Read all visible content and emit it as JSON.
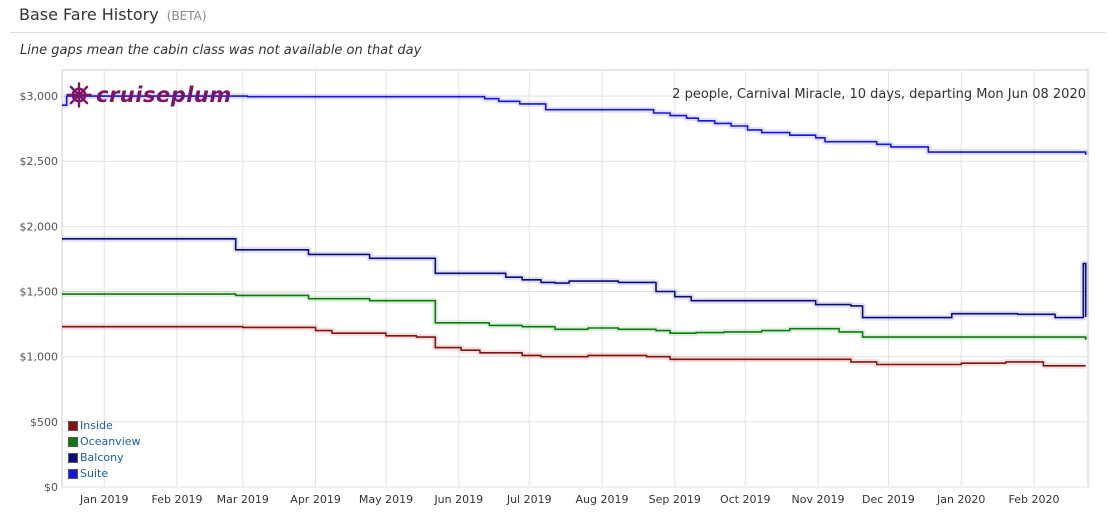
{
  "header": {
    "title": "Base Fare History",
    "beta": "(BETA)",
    "subtitle": "Line gaps mean the cabin class was not available on that day"
  },
  "brand": {
    "name": "cruiseplum",
    "icon": "ship-wheel-icon",
    "color": "#7b1466"
  },
  "chart_data": {
    "type": "line",
    "annotation": "2 people, Carnival Miracle, 10 days, departing Mon Jun 08 2020",
    "ylim": [
      0,
      3200
    ],
    "y_ticks": [
      0,
      500,
      1000,
      1500,
      2000,
      2500,
      3000
    ],
    "y_tick_labels": [
      "$0",
      "$500",
      "$1,000",
      "$1,500",
      "$2,000",
      "$2,500",
      "$3,000"
    ],
    "xlim": [
      "2018-12-14",
      "2020-02-24"
    ],
    "x_ticks": [
      "2019-01-01",
      "2019-02-01",
      "2019-03-01",
      "2019-04-01",
      "2019-05-01",
      "2019-06-01",
      "2019-07-01",
      "2019-08-01",
      "2019-09-01",
      "2019-10-01",
      "2019-11-01",
      "2019-12-01",
      "2020-01-01",
      "2020-02-01"
    ],
    "x_tick_labels": [
      "Jan 2019",
      "Feb 2019",
      "Mar 2019",
      "Apr 2019",
      "May 2019",
      "Jun 2019",
      "Jul 2019",
      "Aug 2019",
      "Sep 2019",
      "Oct 2019",
      "Nov 2019",
      "Dec 2019",
      "Jan 2020",
      "Feb 2020"
    ],
    "grid": true,
    "legend_position": "bottom-left",
    "series": [
      {
        "name": "Suite",
        "color": "#1414e6",
        "x": [
          "2018-12-14",
          "2018-12-16",
          "2019-02-25",
          "2019-03-03",
          "2019-06-08",
          "2019-06-12",
          "2019-06-18",
          "2019-06-27",
          "2019-07-08",
          "2019-08-14",
          "2019-08-23",
          "2019-08-30",
          "2019-09-06",
          "2019-09-11",
          "2019-09-18",
          "2019-09-25",
          "2019-10-02",
          "2019-10-08",
          "2019-10-20",
          "2019-10-31",
          "2019-11-04",
          "2019-11-26",
          "2019-12-02",
          "2019-12-18",
          "2020-02-21",
          "2020-02-23"
        ],
        "values": [
          2930,
          3000,
          3000,
          2995,
          2995,
          2980,
          2960,
          2940,
          2895,
          2895,
          2870,
          2850,
          2830,
          2810,
          2790,
          2770,
          2740,
          2720,
          2700,
          2680,
          2650,
          2630,
          2610,
          2570,
          2570,
          2550
        ]
      },
      {
        "name": "Balcony",
        "color": "#0c0c82",
        "x": [
          "2018-12-14",
          "2019-02-21",
          "2019-02-26",
          "2019-03-29",
          "2019-04-24",
          "2019-05-20",
          "2019-05-22",
          "2019-06-21",
          "2019-06-28",
          "2019-07-06",
          "2019-07-12",
          "2019-07-18",
          "2019-08-08",
          "2019-08-24",
          "2019-09-01",
          "2019-09-08",
          "2019-10-31",
          "2019-11-15",
          "2019-11-20",
          "2019-12-28",
          "2020-01-25",
          "2020-02-10",
          "2020-02-21",
          "2020-02-22",
          "2020-02-23"
        ],
        "values": [
          1905,
          1905,
          1820,
          1785,
          1755,
          1755,
          1640,
          1610,
          1590,
          1570,
          1565,
          1580,
          1570,
          1500,
          1460,
          1430,
          1400,
          1390,
          1300,
          1330,
          1325,
          1300,
          1300,
          1715,
          1305
        ]
      },
      {
        "name": "Oceanview",
        "color": "#0c7a0c",
        "x": [
          "2018-12-14",
          "2019-02-21",
          "2019-02-26",
          "2019-03-29",
          "2019-04-24",
          "2019-05-20",
          "2019-05-22",
          "2019-06-14",
          "2019-06-28",
          "2019-07-12",
          "2019-07-26",
          "2019-08-08",
          "2019-08-24",
          "2019-08-30",
          "2019-09-10",
          "2019-09-22",
          "2019-10-08",
          "2019-10-20",
          "2019-11-10",
          "2019-11-20",
          "2020-02-05",
          "2020-02-23"
        ],
        "values": [
          1480,
          1480,
          1470,
          1445,
          1430,
          1430,
          1260,
          1240,
          1230,
          1210,
          1220,
          1210,
          1200,
          1180,
          1185,
          1190,
          1200,
          1215,
          1190,
          1150,
          1150,
          1130
        ]
      },
      {
        "name": "Inside",
        "color": "#8a1010",
        "x": [
          "2018-12-14",
          "2019-02-21",
          "2019-03-01",
          "2019-04-01",
          "2019-04-08",
          "2019-05-01",
          "2019-05-14",
          "2019-05-22",
          "2019-06-02",
          "2019-06-10",
          "2019-06-28",
          "2019-07-06",
          "2019-07-26",
          "2019-08-20",
          "2019-08-30",
          "2019-10-01",
          "2019-11-15",
          "2019-11-26",
          "2019-12-12",
          "2020-01-01",
          "2020-01-20",
          "2020-02-05",
          "2020-02-23"
        ],
        "values": [
          1230,
          1230,
          1225,
          1200,
          1180,
          1160,
          1150,
          1070,
          1050,
          1030,
          1010,
          1000,
          1010,
          1000,
          980,
          980,
          960,
          940,
          940,
          950,
          960,
          930,
          930
        ]
      }
    ]
  }
}
